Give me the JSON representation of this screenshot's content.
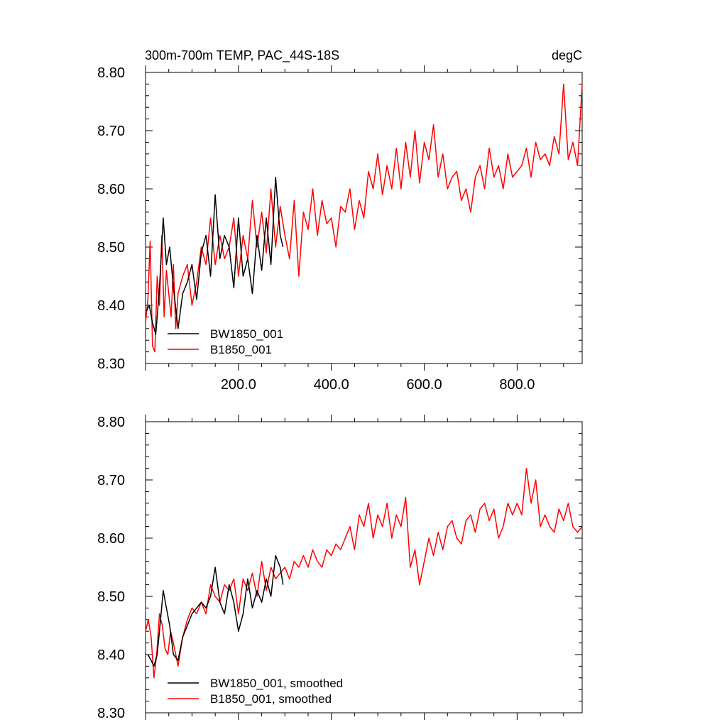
{
  "colors": {
    "black_series": "#000000",
    "red_series": "#ff0000",
    "axis": "#000000"
  },
  "chart_data": [
    {
      "type": "line",
      "title_left": "300m-700m TEMP, PAC_44S-18S",
      "title_right": "degC",
      "xlim": [
        0,
        940
      ],
      "ylim": [
        8.3,
        8.8
      ],
      "xticks": [
        200.0,
        400.0,
        600.0,
        800.0
      ],
      "xtick_labels": [
        "200.0",
        "400.0",
        "600.0",
        "800.0"
      ],
      "yticks": [
        8.3,
        8.4,
        8.5,
        8.6,
        8.7,
        8.8
      ],
      "ytick_labels": [
        "8.30",
        "8.40",
        "8.50",
        "8.60",
        "8.70",
        "8.80"
      ],
      "grid": false,
      "legend_position": "bottom-left",
      "series": [
        {
          "name": "BW1850_001",
          "color": "#000000",
          "x": [
            2,
            8,
            15,
            22,
            30,
            38,
            45,
            52,
            60,
            70,
            80,
            90,
            100,
            110,
            120,
            130,
            140,
            150,
            160,
            170,
            180,
            190,
            200,
            210,
            220,
            230,
            240,
            250,
            260,
            270,
            280,
            290,
            296
          ],
          "values": [
            8.39,
            8.4,
            8.37,
            8.35,
            8.43,
            8.55,
            8.47,
            8.5,
            8.43,
            8.36,
            8.42,
            8.44,
            8.47,
            8.41,
            8.49,
            8.52,
            8.45,
            8.59,
            8.48,
            8.52,
            8.5,
            8.43,
            8.55,
            8.45,
            8.48,
            8.42,
            8.52,
            8.46,
            8.55,
            8.47,
            8.62,
            8.52,
            8.5
          ]
        },
        {
          "name": "B1850_001",
          "color": "#ff0000",
          "x": [
            0,
            5,
            10,
            15,
            20,
            25,
            30,
            35,
            40,
            45,
            50,
            55,
            60,
            65,
            70,
            80,
            90,
            100,
            110,
            120,
            130,
            140,
            150,
            160,
            170,
            180,
            190,
            200,
            210,
            220,
            230,
            240,
            250,
            260,
            270,
            280,
            290,
            300,
            310,
            320,
            330,
            340,
            350,
            360,
            370,
            380,
            390,
            400,
            410,
            420,
            430,
            440,
            450,
            460,
            470,
            480,
            490,
            500,
            510,
            520,
            530,
            540,
            550,
            560,
            570,
            580,
            590,
            600,
            610,
            620,
            630,
            640,
            650,
            660,
            670,
            680,
            690,
            700,
            710,
            720,
            730,
            740,
            750,
            760,
            770,
            780,
            790,
            800,
            810,
            820,
            830,
            840,
            850,
            860,
            870,
            880,
            890,
            900,
            910,
            920,
            930,
            940
          ],
          "values": [
            8.37,
            8.41,
            8.51,
            8.33,
            8.32,
            8.45,
            8.4,
            8.52,
            8.38,
            8.46,
            8.42,
            8.38,
            8.47,
            8.36,
            8.42,
            8.45,
            8.47,
            8.4,
            8.44,
            8.5,
            8.47,
            8.55,
            8.47,
            8.52,
            8.48,
            8.5,
            8.55,
            8.45,
            8.52,
            8.48,
            8.58,
            8.5,
            8.56,
            8.49,
            8.6,
            8.5,
            8.57,
            8.52,
            8.48,
            8.58,
            8.45,
            8.56,
            8.53,
            8.6,
            8.52,
            8.58,
            8.54,
            8.55,
            8.5,
            8.57,
            8.56,
            8.6,
            8.53,
            8.58,
            8.55,
            8.63,
            8.6,
            8.66,
            8.59,
            8.64,
            8.6,
            8.67,
            8.6,
            8.68,
            8.62,
            8.7,
            8.61,
            8.68,
            8.65,
            8.71,
            8.62,
            8.66,
            8.6,
            8.62,
            8.63,
            8.58,
            8.6,
            8.56,
            8.62,
            8.64,
            8.6,
            8.67,
            8.62,
            8.64,
            8.6,
            8.66,
            8.62,
            8.63,
            8.64,
            8.67,
            8.62,
            8.68,
            8.65,
            8.66,
            8.64,
            8.69,
            8.66,
            8.78,
            8.65,
            8.68,
            8.64,
            8.78
          ]
        }
      ]
    },
    {
      "type": "line",
      "xlim": [
        0,
        940
      ],
      "ylim": [
        8.3,
        8.8
      ],
      "yticks": [
        8.3,
        8.4,
        8.5,
        8.6,
        8.7,
        8.8
      ],
      "ytick_labels": [
        "8.30",
        "8.40",
        "8.50",
        "8.60",
        "8.70",
        "8.80"
      ],
      "grid": false,
      "legend_position": "bottom-left",
      "series": [
        {
          "name": "BW1850_001, smoothed",
          "color": "#000000",
          "x": [
            5,
            12,
            18,
            25,
            30,
            38,
            45,
            52,
            60,
            70,
            80,
            90,
            100,
            110,
            120,
            130,
            140,
            150,
            160,
            170,
            180,
            190,
            200,
            210,
            220,
            230,
            240,
            250,
            260,
            270,
            280,
            290,
            296
          ],
          "values": [
            8.4,
            8.39,
            8.38,
            8.4,
            8.44,
            8.51,
            8.48,
            8.45,
            8.4,
            8.39,
            8.43,
            8.45,
            8.47,
            8.48,
            8.49,
            8.48,
            8.5,
            8.55,
            8.49,
            8.47,
            8.52,
            8.49,
            8.44,
            8.47,
            8.53,
            8.48,
            8.51,
            8.49,
            8.53,
            8.5,
            8.57,
            8.55,
            8.52
          ]
        },
        {
          "name": "B1850_001, smoothed",
          "color": "#ff0000",
          "x": [
            0,
            6,
            12,
            18,
            24,
            30,
            36,
            42,
            48,
            54,
            60,
            70,
            80,
            90,
            100,
            110,
            120,
            130,
            140,
            150,
            160,
            170,
            180,
            190,
            200,
            210,
            220,
            230,
            240,
            250,
            260,
            270,
            280,
            290,
            300,
            310,
            320,
            330,
            340,
            350,
            360,
            370,
            380,
            390,
            400,
            410,
            420,
            430,
            440,
            450,
            460,
            470,
            480,
            490,
            500,
            510,
            520,
            530,
            540,
            550,
            560,
            570,
            580,
            590,
            600,
            610,
            620,
            630,
            640,
            650,
            660,
            670,
            680,
            690,
            700,
            710,
            720,
            730,
            740,
            750,
            760,
            770,
            780,
            790,
            800,
            810,
            820,
            830,
            840,
            850,
            860,
            870,
            880,
            890,
            900,
            910,
            920,
            930,
            940
          ],
          "values": [
            8.44,
            8.46,
            8.43,
            8.36,
            8.4,
            8.47,
            8.45,
            8.41,
            8.4,
            8.44,
            8.42,
            8.38,
            8.43,
            8.46,
            8.48,
            8.47,
            8.49,
            8.47,
            8.52,
            8.5,
            8.49,
            8.52,
            8.51,
            8.53,
            8.47,
            8.53,
            8.51,
            8.54,
            8.5,
            8.56,
            8.51,
            8.55,
            8.53,
            8.54,
            8.55,
            8.53,
            8.56,
            8.55,
            8.57,
            8.55,
            8.58,
            8.56,
            8.55,
            8.58,
            8.57,
            8.59,
            8.58,
            8.6,
            8.62,
            8.58,
            8.64,
            8.62,
            8.66,
            8.6,
            8.64,
            8.62,
            8.66,
            8.6,
            8.64,
            8.62,
            8.67,
            8.55,
            8.58,
            8.52,
            8.56,
            8.6,
            8.57,
            8.61,
            8.58,
            8.62,
            8.63,
            8.6,
            8.59,
            8.63,
            8.64,
            8.61,
            8.65,
            8.66,
            8.63,
            8.65,
            8.6,
            8.62,
            8.66,
            8.64,
            8.66,
            8.64,
            8.72,
            8.66,
            8.7,
            8.62,
            8.64,
            8.62,
            8.61,
            8.65,
            8.63,
            8.66,
            8.62,
            8.61,
            8.62
          ]
        }
      ]
    }
  ]
}
